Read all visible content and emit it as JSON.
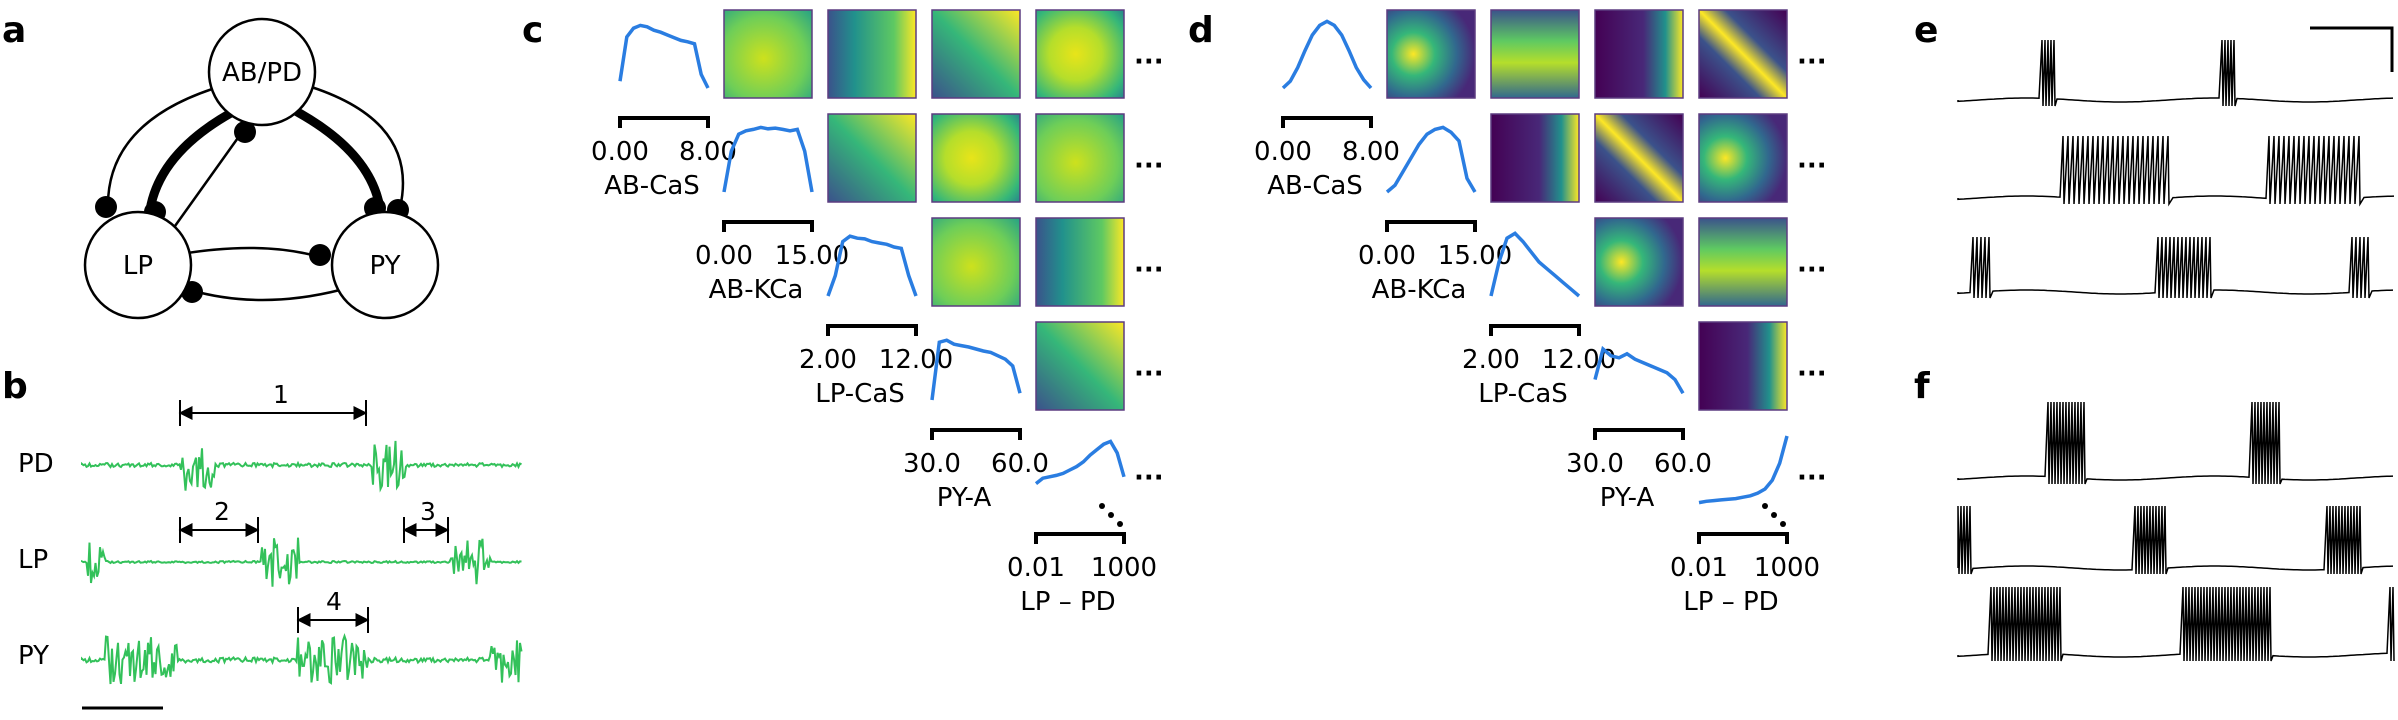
{
  "panels": {
    "a": "a",
    "b": "b",
    "c": "c",
    "d": "d",
    "e": "e",
    "f": "f"
  },
  "network": {
    "nodes": [
      "AB/PD",
      "LP",
      "PY"
    ]
  },
  "traces": {
    "labels": [
      "PD",
      "LP",
      "PY"
    ],
    "intervals": [
      "1",
      "2",
      "3",
      "4"
    ]
  },
  "matrix_c": {
    "params": [
      "AB-CaS",
      "AB-KCa",
      "LP-CaS",
      "PY-A",
      "LP – PD"
    ],
    "ranges": [
      [
        "0.00",
        "8.00"
      ],
      [
        "0.00",
        "15.00"
      ],
      [
        "2.00",
        "12.00"
      ],
      [
        "30.0",
        "60.0"
      ],
      [
        "0.01",
        "1000"
      ]
    ],
    "ellipsis": "···"
  },
  "matrix_d": {
    "params": [
      "AB-CaS",
      "AB-KCa",
      "LP-CaS",
      "PY-A",
      "LP – PD"
    ],
    "ranges": [
      [
        "0.00",
        "8.00"
      ],
      [
        "0.00",
        "15.00"
      ],
      [
        "2.00",
        "12.00"
      ],
      [
        "30.0",
        "60.0"
      ],
      [
        "0.01",
        "1000"
      ]
    ],
    "ellipsis": "···"
  },
  "colors": {
    "trace_green": "#33c15a",
    "marginal_blue": "#2a7de1",
    "viridis_low": "#440154",
    "viridis_mid": "#21918c",
    "viridis_high": "#fde725"
  }
}
